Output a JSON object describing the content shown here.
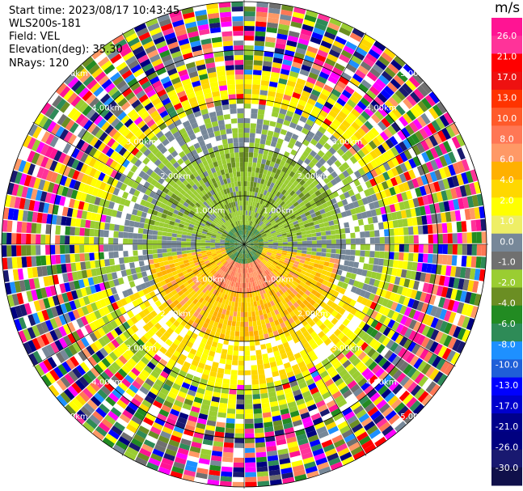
{
  "header": {
    "start_time": "Start time: 2023/08/17 10:43:45",
    "instrument": "WLS200s-181",
    "field": "Field: VEL",
    "elevation": "Elevation(deg): 35.30",
    "nrays": "NRays: 120"
  },
  "chart_data": {
    "type": "heatmap",
    "projection": "polar-ppi",
    "title": "",
    "field": "VEL",
    "units": "m/s",
    "ring_labels": [
      "1.00km",
      "2.00km",
      "3.00km",
      "4.00km",
      "5.00km"
    ],
    "nrays": 120,
    "elevation_deg": 35.3,
    "colorbar": {
      "label": "m/s",
      "ticks": [
        "26.0",
        "21.0",
        "17.0",
        "13.0",
        "10.0",
        "8.0",
        "6.0",
        "4.0",
        "2.0",
        "1.0",
        "0.0",
        "-1.0",
        "-2.0",
        "-4.0",
        "-6.0",
        "-8.0",
        "-10.0",
        "-13.0",
        "-17.0",
        "-21.0",
        "-26.0",
        "-30.0"
      ],
      "colors": [
        "#ff1493",
        "#ff3399",
        "#ff0000",
        "#ee1111",
        "#ff3300",
        "#ff5a2a",
        "#ff7755",
        "#ff9966",
        "#ffb000",
        "#ffd700",
        "#ffff00",
        "#eeee66",
        "#778899",
        "#707070",
        "#9acd32",
        "#6b8e23",
        "#228b22",
        "#2e8b57",
        "#1e90ff",
        "#1f5fd8",
        "#0000ff",
        "#0000cd",
        "#00008b",
        "#000080",
        "#191970",
        "#10104a"
      ]
    }
  }
}
